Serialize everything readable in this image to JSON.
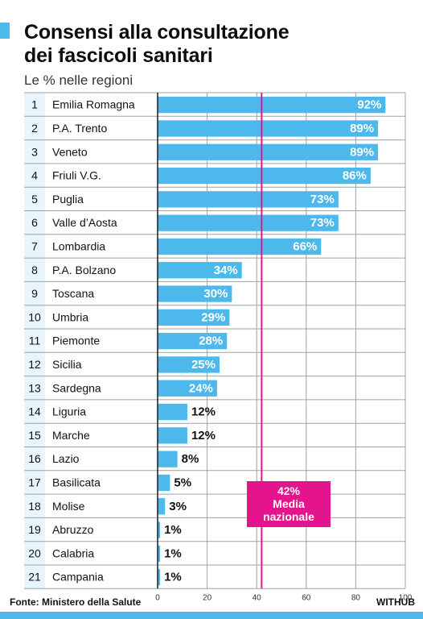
{
  "title_line1": "Consensi alla consultazione",
  "title_line2": "dei fascicoli sanitari",
  "subtitle": "Le % nelle regioni",
  "source": "Fonte: Ministero della Salute",
  "brand": "WITHUB",
  "colors": {
    "bar": "#4cb8ec",
    "average_line": "#e4158c",
    "rank_bg": "#e8f5fc",
    "grid": "#9aa4aa"
  },
  "chart_data": {
    "type": "bar",
    "orientation": "horizontal",
    "ranks": [
      "1",
      "2",
      "3",
      "4",
      "5",
      "6",
      "7",
      "8",
      "9",
      "10",
      "11",
      "12",
      "13",
      "14",
      "15",
      "16",
      "17",
      "18",
      "19",
      "20",
      "21"
    ],
    "categories": [
      "Emilia Romagna",
      "P.A. Trento",
      "Veneto",
      "Friuli V.G.",
      "Puglia",
      "Valle d’Aosta",
      "Lombardia",
      "P.A. Bolzano",
      "Toscana",
      "Umbria",
      "Piemonte",
      "Sicilia",
      "Sardegna",
      "Liguria",
      "Marche",
      "Lazio",
      "Basilicata",
      "Molise",
      "Abruzzo",
      "Calabria",
      "Campania"
    ],
    "values": [
      92,
      89,
      89,
      86,
      73,
      73,
      66,
      34,
      30,
      29,
      28,
      25,
      24,
      12,
      12,
      8,
      5,
      3,
      1,
      1,
      1
    ],
    "value_labels": [
      "92%",
      "89%",
      "89%",
      "86%",
      "73%",
      "73%",
      "66%",
      "34%",
      "30%",
      "29%",
      "28%",
      "25%",
      "24%",
      "12%",
      "12%",
      "8%",
      "5%",
      "3%",
      "1%",
      "1%",
      "1%"
    ],
    "xlim": [
      0,
      100
    ],
    "xticks": [
      "0",
      "20",
      "40",
      "60",
      "80",
      "100"
    ],
    "reference_line": {
      "value": 42,
      "label_value": "42%",
      "label_line1": "Media",
      "label_line2": "nazionale"
    }
  }
}
